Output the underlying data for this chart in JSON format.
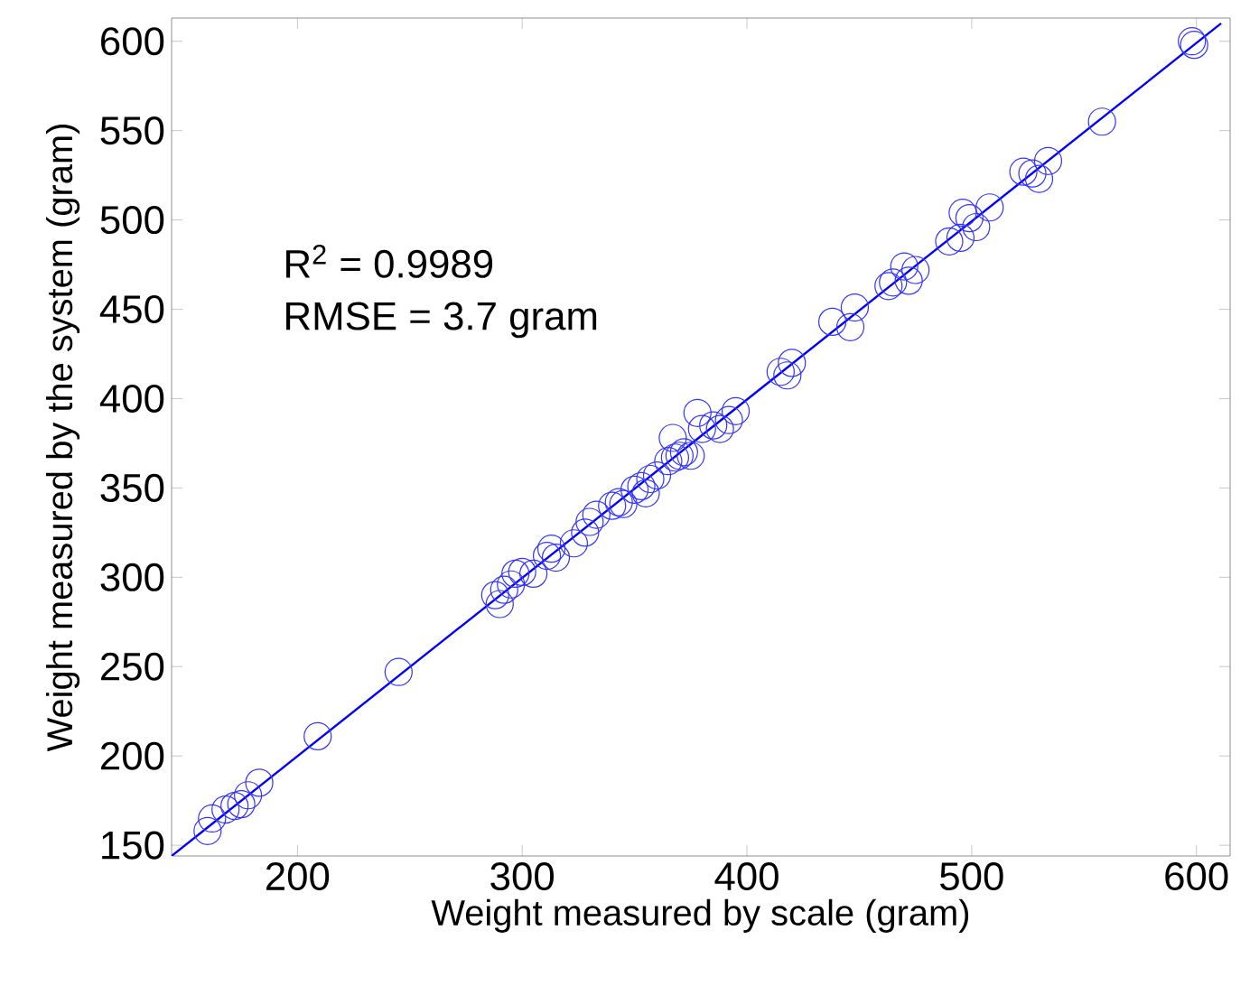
{
  "chart_data": {
    "type": "scatter",
    "xlabel": "Weight measured by scale (gram)",
    "ylabel": "Weight measured by the system (gram)",
    "annotations": [
      "R$^{2}$ = 0.9989",
      "RMSE = 3.7 gram"
    ],
    "xlim": [
      144,
      615
    ],
    "ylim": [
      144,
      613
    ],
    "xticks": [
      200,
      300,
      400,
      500,
      600
    ],
    "yticks": [
      150,
      200,
      250,
      300,
      350,
      400,
      450,
      500,
      550,
      600
    ],
    "grid": false,
    "series": [
      {
        "marker": "circle",
        "color": "#3333ff",
        "x": [
          160,
          162,
          168,
          172,
          175,
          178,
          183,
          209,
          245,
          288,
          290,
          292,
          295,
          297,
          300,
          305,
          311,
          313,
          315,
          323,
          328,
          330,
          333,
          340,
          343,
          345,
          350,
          353,
          355,
          357,
          360,
          365,
          367,
          368,
          370,
          372,
          375,
          378,
          380,
          385,
          388,
          392,
          395,
          415,
          418,
          420,
          438,
          446,
          448,
          463,
          465,
          470,
          472,
          475,
          490,
          495,
          496,
          499,
          502,
          508,
          523,
          527,
          530,
          534,
          558,
          598,
          599
        ],
        "values": [
          158,
          165,
          170,
          172,
          173,
          178,
          185,
          211,
          247,
          290,
          285,
          293,
          296,
          302,
          303,
          302,
          312,
          316,
          311,
          319,
          325,
          331,
          335,
          340,
          342,
          341,
          349,
          351,
          347,
          355,
          357,
          365,
          378,
          367,
          368,
          370,
          368,
          392,
          383,
          385,
          383,
          388,
          393,
          415,
          413,
          420,
          443,
          440,
          451,
          463,
          465,
          474,
          466,
          472,
          488,
          490,
          504,
          501,
          496,
          507,
          527,
          526,
          523,
          533,
          555,
          600,
          598
        ]
      },
      {
        "type": "line",
        "marker": "none",
        "line_style": "solid",
        "color": "#0000ff",
        "x": [
          144,
          611
        ],
        "values": [
          144,
          610
        ]
      }
    ]
  }
}
